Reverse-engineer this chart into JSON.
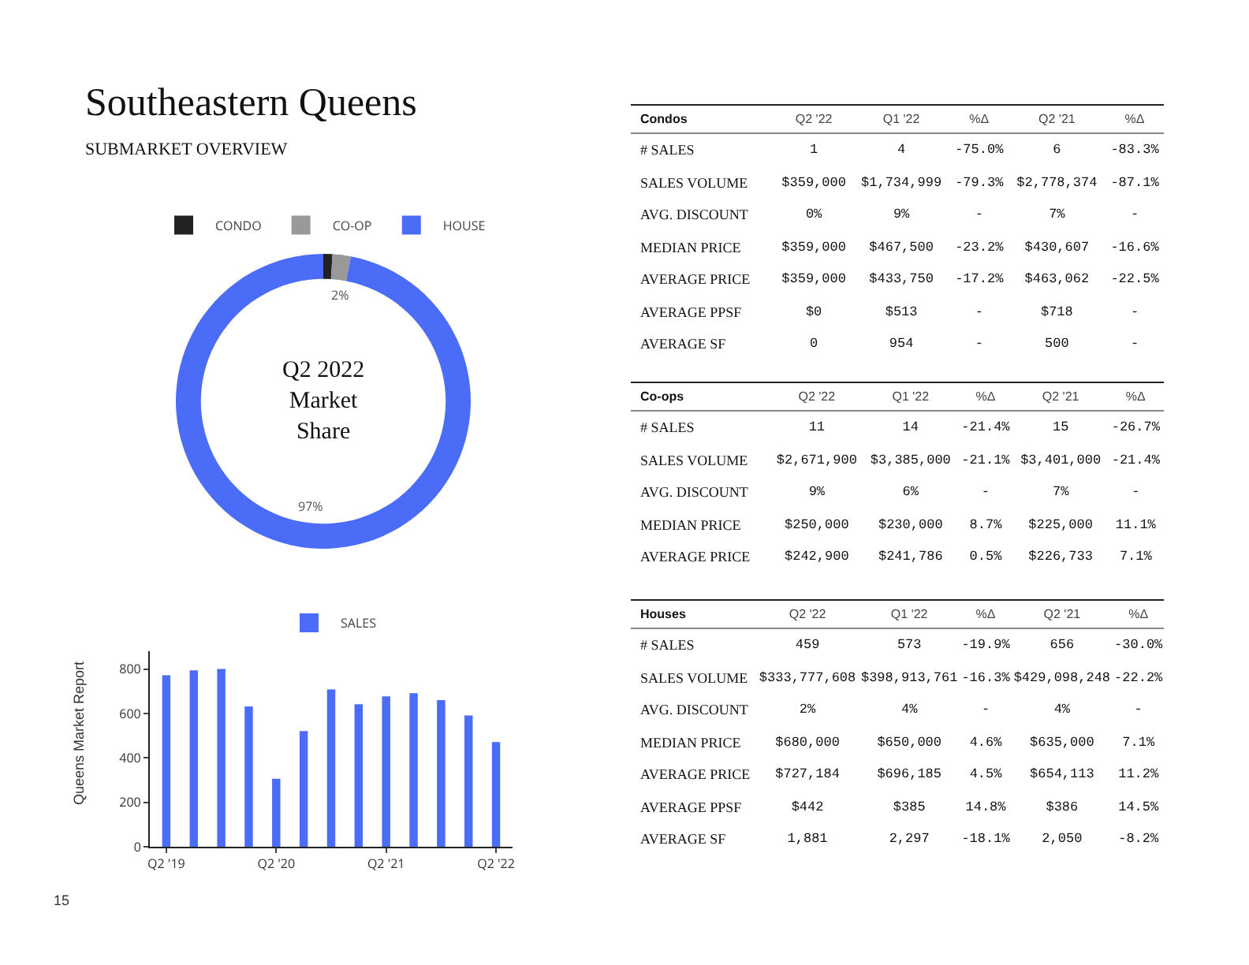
{
  "chart_data": [
    {
      "type": "donut",
      "title": "Southeastern Queens",
      "subtitle": "SUBMARKET OVERVIEW",
      "annotations": [
        "Q2 2022\nMarket\nShare"
      ],
      "categories": [
        "CONDO",
        "CO-OP",
        "HOUSE"
      ],
      "values": [
        1,
        2,
        97
      ],
      "colors": [
        "#222222",
        "#999999",
        "#4a6cf7"
      ],
      "value_labels": [
        null,
        "2%",
        "97%"
      ],
      "legend": "top"
    },
    {
      "type": "bar",
      "annotations": [
        "Queens Market Report",
        "15"
      ],
      "categories": [
        "Q2 '19",
        null,
        null,
        null,
        "Q2 '20",
        null,
        null,
        null,
        "Q2 '21",
        null,
        null,
        null,
        "Q2 '22"
      ],
      "series": [
        {
          "name": "SALES",
          "color": "#4a6cf7",
          "values": [
            772,
            794,
            800,
            632,
            306,
            521,
            708,
            641,
            677,
            691,
            660,
            591,
            471
          ]
        }
      ],
      "ylim": [
        0,
        880
      ],
      "yticks": [
        0,
        200,
        400,
        600,
        800
      ],
      "legend": "top",
      "grid": false
    },
    {
      "type": "other",
      "title": "Condos",
      "categories": [
        "Q2 '22",
        "Q1 '22",
        "%Δ",
        "Q2 '21",
        "%Δ"
      ],
      "y_categories": [
        "# SALES",
        "SALES VOLUME",
        "AVG. DISCOUNT",
        "MEDIAN PRICE",
        "AVERAGE PRICE",
        "AVERAGE PPSF",
        "AVERAGE SF"
      ],
      "cell_labels": [
        [
          "1",
          "4",
          "-75.0%",
          "6",
          "-83.3%"
        ],
        [
          "$359,000",
          "$1,734,999",
          "-79.3%",
          "$2,778,374",
          "-87.1%"
        ],
        [
          "0%",
          "9%",
          "-",
          "7%",
          "-"
        ],
        [
          "$359,000",
          "$467,500",
          "-23.2%",
          "$430,607",
          "-16.6%"
        ],
        [
          "$359,000",
          "$433,750",
          "-17.2%",
          "$463,062",
          "-22.5%"
        ],
        [
          "$0",
          "$513",
          "-",
          "$718",
          "-"
        ],
        [
          "0",
          "954",
          "-",
          "500",
          "-"
        ]
      ]
    },
    {
      "type": "other",
      "title": "Co-ops",
      "categories": [
        "Q2 '22",
        "Q1 '22",
        "%Δ",
        "Q2 '21",
        "%Δ"
      ],
      "y_categories": [
        "# SALES",
        "SALES VOLUME",
        "AVG. DISCOUNT",
        "MEDIAN PRICE",
        "AVERAGE PRICE"
      ],
      "cell_labels": [
        [
          "11",
          "14",
          "-21.4%",
          "15",
          "-26.7%"
        ],
        [
          "$2,671,900",
          "$3,385,000",
          "-21.1%",
          "$3,401,000",
          "-21.4%"
        ],
        [
          "9%",
          "6%",
          "-",
          "7%",
          "-"
        ],
        [
          "$250,000",
          "$230,000",
          "8.7%",
          "$225,000",
          "11.1%"
        ],
        [
          "$242,900",
          "$241,786",
          "0.5%",
          "$226,733",
          "7.1%"
        ]
      ]
    },
    {
      "type": "other",
      "title": "Houses",
      "categories": [
        "Q2 '22",
        "Q1 '22",
        "%Δ",
        "Q2 '21",
        "%Δ"
      ],
      "y_categories": [
        "# SALES",
        "SALES VOLUME",
        "AVG. DISCOUNT",
        "MEDIAN PRICE",
        "AVERAGE PRICE",
        "AVERAGE PPSF",
        "AVERAGE SF"
      ],
      "cell_labels": [
        [
          "459",
          "573",
          "-19.9%",
          "656",
          "-30.0%"
        ],
        [
          "$333,777,608",
          "$398,913,761",
          "-16.3%",
          "$429,098,248",
          "-22.2%"
        ],
        [
          "2%",
          "4%",
          "-",
          "4%",
          "-"
        ],
        [
          "$680,000",
          "$650,000",
          "4.6%",
          "$635,000",
          "7.1%"
        ],
        [
          "$727,184",
          "$696,185",
          "4.5%",
          "$654,113",
          "11.2%"
        ],
        [
          "$442",
          "$385",
          "14.8%",
          "$386",
          "14.5%"
        ],
        [
          "1,881",
          "2,297",
          "-18.1%",
          "2,050",
          "-8.2%"
        ]
      ]
    }
  ]
}
